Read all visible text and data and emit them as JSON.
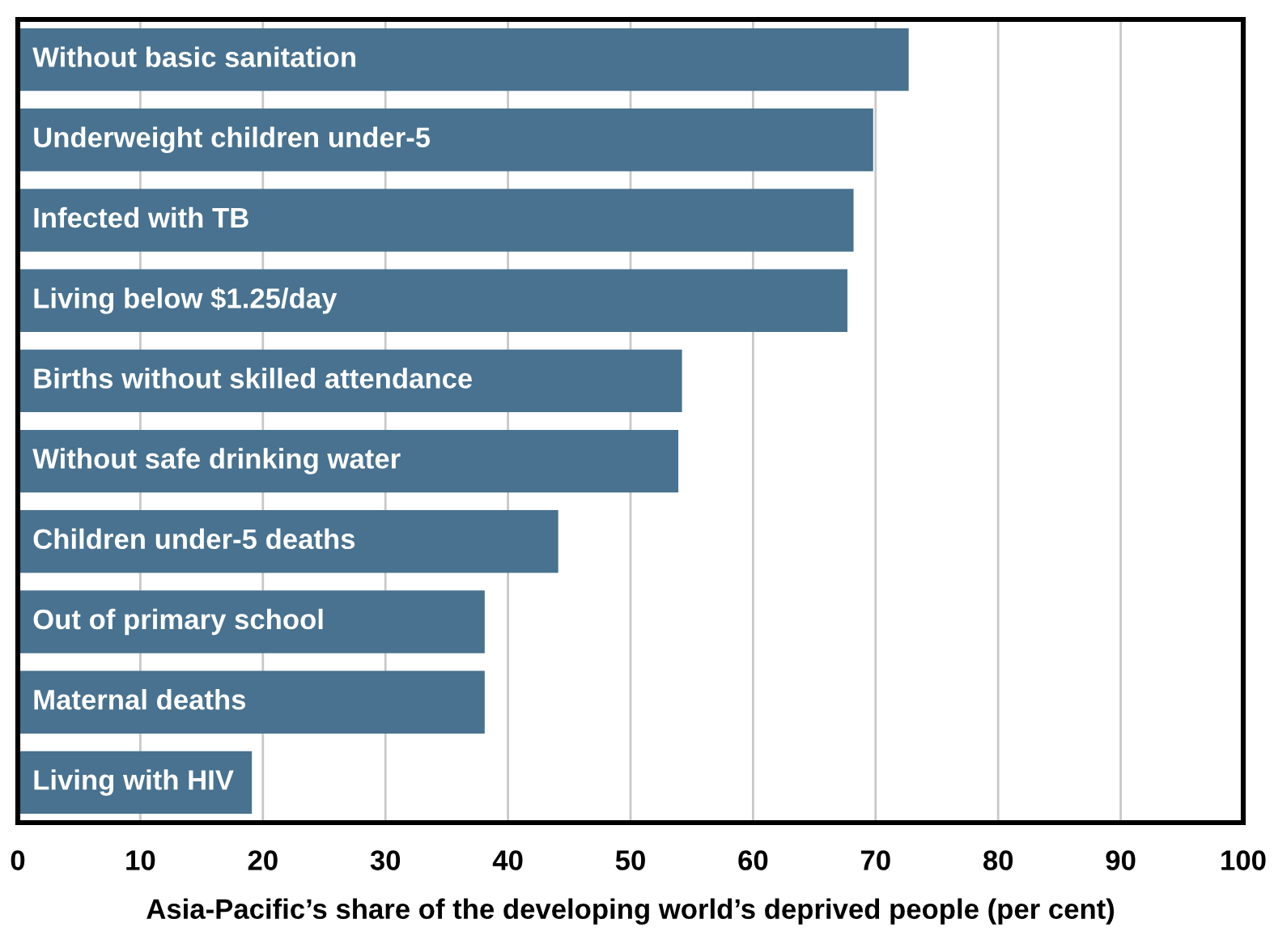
{
  "chart_data": {
    "type": "bar",
    "orientation": "horizontal",
    "categories": [
      "Without basic sanitation",
      "Underweight children under-5",
      "Infected with TB",
      "Living below $1.25/day",
      "Births without skilled attendance",
      "Without safe drinking water",
      "Children under-5 deaths",
      "Out of primary school",
      "Maternal deaths",
      "Living with HIV"
    ],
    "values": [
      72.7,
      69.8,
      68.2,
      67.7,
      54.2,
      53.9,
      44.1,
      38.1,
      38.1,
      19.1
    ],
    "color": "#48728f",
    "xlabel": "Asia-Pacific’s share of the developing world’s deprived people (per cent)",
    "xlim": [
      0,
      100
    ],
    "xticks": [
      0,
      10,
      20,
      30,
      40,
      50,
      60,
      70,
      80,
      90,
      100
    ],
    "grid": "x"
  }
}
